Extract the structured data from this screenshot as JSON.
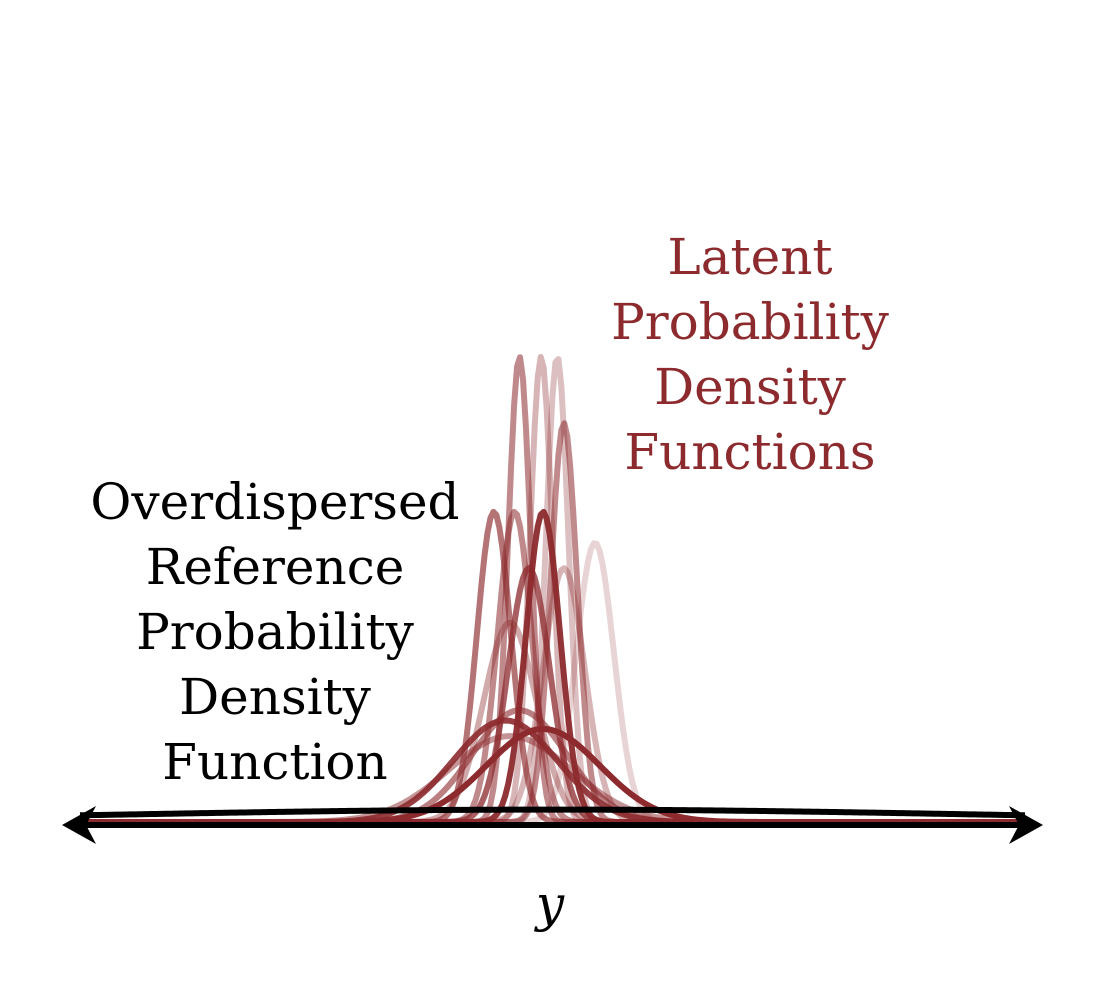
{
  "diagram": {
    "latent_label_lines": [
      "Latent",
      "Probability",
      "Density",
      "Functions"
    ],
    "reference_label_lines": [
      "Overdispersed",
      "Reference",
      "Probability",
      "Density",
      "Function"
    ],
    "axis_label": "y"
  },
  "colors": {
    "latent": "#8c2a2d",
    "reference": "#000000",
    "background": "#ffffff"
  },
  "axis": {
    "x_range": [
      -5,
      5
    ],
    "arrows": "both-ends"
  },
  "chart_data": {
    "type": "line",
    "description_units": "y (data units)",
    "reference_density": {
      "mean": 0,
      "sd": 4.5,
      "color": "#000000"
    },
    "latent_densities": [
      {
        "mean": 0.05,
        "sd": 0.12,
        "opacity": 0.3
      },
      {
        "mean": -0.35,
        "sd": 0.12,
        "opacity": 0.55
      },
      {
        "mean": -0.12,
        "sd": 0.12,
        "opacity": 0.35
      },
      {
        "mean": 0.12,
        "sd": 0.14,
        "opacity": 0.55
      },
      {
        "mean": -0.1,
        "sd": 0.18,
        "opacity": 0.95
      },
      {
        "mean": -0.4,
        "sd": 0.18,
        "opacity": 0.55
      },
      {
        "mean": -0.62,
        "sd": 0.18,
        "opacity": 0.65
      },
      {
        "mean": 0.12,
        "sd": 0.22,
        "opacity": 0.35
      },
      {
        "mean": -0.25,
        "sd": 0.22,
        "opacity": 0.75
      },
      {
        "mean": -0.45,
        "sd": 0.28,
        "opacity": 0.4
      },
      {
        "mean": 0.45,
        "sd": 0.2,
        "opacity": 0.2
      },
      {
        "mean": -0.5,
        "sd": 0.55,
        "opacity": 0.9
      },
      {
        "mean": -0.35,
        "sd": 0.5,
        "opacity": 0.6
      },
      {
        "mean": -0.45,
        "sd": 0.65,
        "opacity": 0.5
      },
      {
        "mean": -0.1,
        "sd": 0.6,
        "opacity": 1.0
      }
    ]
  }
}
